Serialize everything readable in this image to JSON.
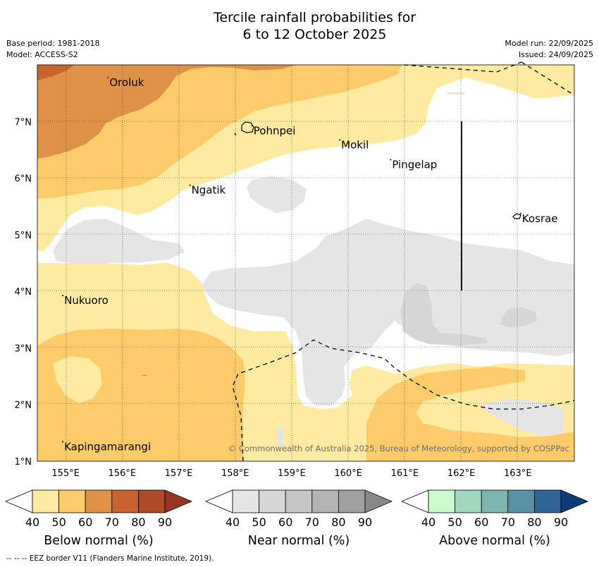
{
  "title": {
    "line1": "Tercile rainfall probabilities for",
    "line2": "6 to 12 October 2025"
  },
  "meta": {
    "base_period": "Base period: 1981-2018",
    "model": "Model: ACCESS-S2",
    "model_run": "Model run: 22/09/2025",
    "issued": "Issued: 24/09/2025"
  },
  "map": {
    "lon_ticks": [
      "155°E",
      "156°E",
      "157°E",
      "158°E",
      "159°E",
      "160°E",
      "161°E",
      "162°E",
      "163°E"
    ],
    "lat_ticks": [
      "1°N",
      "2°N",
      "3°N",
      "4°N",
      "5°N",
      "6°N",
      "7°N"
    ],
    "places": [
      {
        "name": "Oroluk",
        "lon": 155.75,
        "lat": 7.7
      },
      {
        "name": "Pohnpei",
        "lon": 158.3,
        "lat": 6.85
      },
      {
        "name": "Mokil",
        "lon": 159.85,
        "lat": 6.6
      },
      {
        "name": "Pingelap",
        "lon": 160.75,
        "lat": 6.25
      },
      {
        "name": "Ngatik",
        "lon": 157.2,
        "lat": 5.8
      },
      {
        "name": "Kosrae",
        "lon": 163.05,
        "lat": 5.3
      },
      {
        "name": "Nukuoro",
        "lon": 154.95,
        "lat": 3.85
      },
      {
        "name": "Kapingamarangi",
        "lon": 154.95,
        "lat": 1.27
      }
    ],
    "credit": "© Commonwealth of Australia 2025, Bureau of Meteorology, supported by COSPPac"
  },
  "colorbars": [
    {
      "label": "Below normal (%)",
      "colors": [
        "#ffffff",
        "#feeaa0",
        "#fdcb69",
        "#df9247",
        "#c8622f",
        "#ad4a2a",
        "#973525"
      ],
      "ticks": [
        "40",
        "50",
        "60",
        "70",
        "80",
        "90"
      ]
    },
    {
      "label": "Near normal (%)",
      "colors": [
        "#ffffff",
        "#e5e5e5",
        "#d6d6d6",
        "#c6c6c6",
        "#b3b3b3",
        "#a0a0a0",
        "#888888"
      ],
      "ticks": [
        "40",
        "50",
        "60",
        "70",
        "80",
        "90"
      ]
    },
    {
      "label": "Above normal (%)",
      "colors": [
        "#ffffff",
        "#ccf9cc",
        "#a1d7bf",
        "#7db4b2",
        "#5a90a4",
        "#2e6496",
        "#0d3d78"
      ],
      "ticks": [
        "40",
        "50",
        "60",
        "70",
        "80",
        "90"
      ]
    }
  ],
  "footer": "--  --  -- EEZ border V11 (Flanders Marine Institute, 2019)."
}
